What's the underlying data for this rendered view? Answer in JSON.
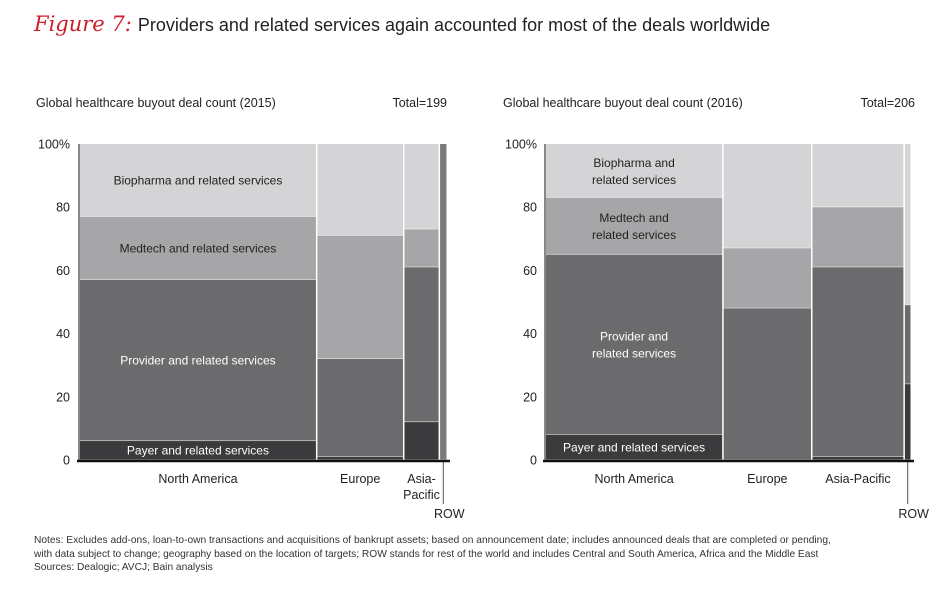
{
  "figure": {
    "label": "Figure 7:",
    "title": "Providers and related services again accounted for most of the deals worldwide"
  },
  "colors": {
    "biopharma": "#d4d4d6",
    "medtech": "#a6a6a8",
    "provider": "#6b6b6d",
    "payer": "#3b3b3d",
    "row": "#7b7b7d",
    "axis": "#111111",
    "text_dark": "#222222",
    "text_light": "#ffffff"
  },
  "chart_data": [
    {
      "type": "marimekko",
      "title": "Global healthcare buyout deal count (2015)",
      "total_label": "Total=199",
      "ylim": [
        0,
        100
      ],
      "y_ticks": [
        "0",
        "20",
        "40",
        "60",
        "80",
        "100%"
      ],
      "y_tick_values": [
        0,
        20,
        40,
        60,
        80,
        100
      ],
      "segment_labels": [
        "Payer and related services",
        "Provider and related services",
        "Medtech and related services",
        "Biopharma and related services"
      ],
      "categories": [
        {
          "name": "North America",
          "width_share": 60,
          "segments": [
            {
              "name": "Payer and related services",
              "value": 6
            },
            {
              "name": "Provider and related services",
              "value": 51
            },
            {
              "name": "Medtech and related services",
              "value": 20
            },
            {
              "name": "Biopharma and related services",
              "value": 23
            }
          ]
        },
        {
          "name": "Europe",
          "width_share": 22,
          "segments": [
            {
              "name": "Payer and related services",
              "value": 1
            },
            {
              "name": "Provider and related services",
              "value": 31
            },
            {
              "name": "Medtech and related services",
              "value": 39
            },
            {
              "name": "Biopharma and related services",
              "value": 29
            }
          ]
        },
        {
          "name": "Asia-Pacific",
          "width_share": 9,
          "segments": [
            {
              "name": "Payer and related services",
              "value": 12
            },
            {
              "name": "Provider and related services",
              "value": 49
            },
            {
              "name": "Medtech and related services",
              "value": 12
            },
            {
              "name": "Biopharma and related services",
              "value": 27
            }
          ]
        },
        {
          "name": "ROW",
          "width_share": 2,
          "segments": [
            {
              "name": "Provider and related services",
              "value": 100
            }
          ]
        }
      ]
    },
    {
      "type": "marimekko",
      "title": "Global healthcare buyout deal count (2016)",
      "total_label": "Total=206",
      "ylim": [
        0,
        100
      ],
      "y_ticks": [
        "0",
        "20",
        "40",
        "60",
        "80",
        "100%"
      ],
      "y_tick_values": [
        0,
        20,
        40,
        60,
        80,
        100
      ],
      "segment_labels": [
        "Payer and related services",
        "Provider and related services",
        "Medtech and related services",
        "Biopharma and related services"
      ],
      "categories": [
        {
          "name": "North America",
          "width_share": 50,
          "segments": [
            {
              "name": "Payer and related services",
              "value": 8
            },
            {
              "name": "Provider and related services",
              "value": 57
            },
            {
              "name": "Medtech and related services",
              "value": 18
            },
            {
              "name": "Biopharma and related services",
              "value": 17
            }
          ]
        },
        {
          "name": "Europe",
          "width_share": 25,
          "segments": [
            {
              "name": "Provider and related services",
              "value": 48
            },
            {
              "name": "Medtech and related services",
              "value": 19
            },
            {
              "name": "Biopharma and related services",
              "value": 33
            }
          ]
        },
        {
          "name": "Asia-Pacific",
          "width_share": 26,
          "segments": [
            {
              "name": "Payer and related services",
              "value": 1
            },
            {
              "name": "Provider and related services",
              "value": 60
            },
            {
              "name": "Medtech and related services",
              "value": 19
            },
            {
              "name": "Biopharma and related services",
              "value": 20
            }
          ]
        },
        {
          "name": "ROW",
          "width_share": 2,
          "segments": [
            {
              "name": "Payer and related services",
              "value": 24
            },
            {
              "name": "Provider and related services",
              "value": 25
            },
            {
              "name": "Biopharma and related services",
              "value": 51
            }
          ]
        }
      ]
    }
  ],
  "notes": {
    "line1": "Notes: Excludes add-ons, loan-to-own transactions and acquisitions of bankrupt assets; based on announcement date; includes announced deals that are completed or pending,",
    "line2": "with data subject to change; geography based on the location of targets; ROW stands for rest of the world and includes Central and South America, Africa and the Middle East",
    "sources": "Sources: Dealogic; AVCJ; Bain analysis"
  }
}
